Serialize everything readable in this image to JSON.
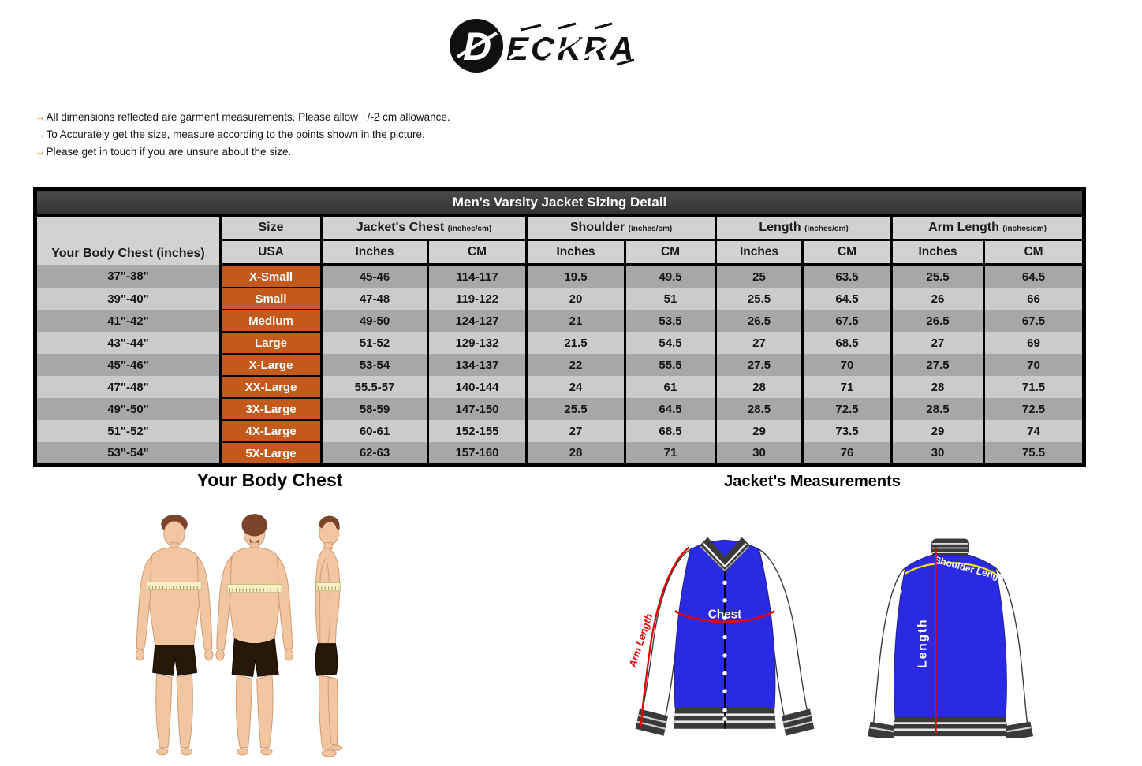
{
  "logo": {
    "d": "D",
    "rest": "ECKRA"
  },
  "notes": [
    "All dimensions reflected are garment measurements. Please allow +/-2 cm allowance.",
    "To Accurately get the size, measure according to the points shown in the picture.",
    "Please get in touch if you are unsure about the size."
  ],
  "table": {
    "title": "Men's Varsity Jacket Sizing Detail",
    "body_chest_header": "Your Body Chest (inches)",
    "size_header": "Size",
    "usa_header": "USA",
    "groups": [
      {
        "label": "Jacket's Chest",
        "unit": "(inches/cm)"
      },
      {
        "label": "Shoulder",
        "unit": "(inches/cm)"
      },
      {
        "label": "Length",
        "unit": "(inches/cm)"
      },
      {
        "label": "Arm Length",
        "unit": "(inches/cm)"
      }
    ],
    "sub_headers": [
      "Inches",
      "CM"
    ],
    "rows": [
      [
        "37\"-38\"",
        "X-Small",
        "45-46",
        "114-117",
        "19.5",
        "49.5",
        "25",
        "63.5",
        "25.5",
        "64.5"
      ],
      [
        "39\"-40\"",
        "Small",
        "47-48",
        "119-122",
        "20",
        "51",
        "25.5",
        "64.5",
        "26",
        "66"
      ],
      [
        "41\"-42\"",
        "Medium",
        "49-50",
        "124-127",
        "21",
        "53.5",
        "26.5",
        "67.5",
        "26.5",
        "67.5"
      ],
      [
        "43\"-44\"",
        "Large",
        "51-52",
        "129-132",
        "21.5",
        "54.5",
        "27",
        "68.5",
        "27",
        "69"
      ],
      [
        "45\"-46\"",
        "X-Large",
        "53-54",
        "134-137",
        "22",
        "55.5",
        "27.5",
        "70",
        "27.5",
        "70"
      ],
      [
        "47\"-48\"",
        "XX-Large",
        "55.5-57",
        "140-144",
        "24",
        "61",
        "28",
        "71",
        "28",
        "71.5"
      ],
      [
        "49\"-50\"",
        "3X-Large",
        "58-59",
        "147-150",
        "25.5",
        "64.5",
        "28.5",
        "72.5",
        "28.5",
        "72.5"
      ],
      [
        "51\"-52\"",
        "4X-Large",
        "60-61",
        "152-155",
        "27",
        "68.5",
        "29",
        "73.5",
        "29",
        "74"
      ],
      [
        "53\"-54\"",
        "5X-Large",
        "62-63",
        "157-160",
        "28",
        "71",
        "30",
        "76",
        "30",
        "75.5"
      ]
    ]
  },
  "sections": {
    "body_title": "Your Body Chest",
    "jacket_title": "Jacket's Measurements"
  },
  "diagram_labels": {
    "chest": "Chest",
    "arm_length": "Arm Length",
    "shoulder_length": "Shoulder Length",
    "length": "Length"
  },
  "colors": {
    "accent_orange": "#c4591c",
    "arrow_orange": "#e8732a",
    "title_bar": "#3a3a3a",
    "header_gray": "#d2d2d2",
    "row_dark": "#a7a7a7",
    "row_light": "#cbcbcb",
    "jacket_blue": "#2a2ae2",
    "garment_dark": "#3a3a3a",
    "measure_red": "#e60000",
    "measure_yellow": "#f2e50a",
    "skin": "#f1c6a1",
    "hair_brown": "#7b432a",
    "shorts_brown": "#281808",
    "tape_cream": "#f6f0c4"
  }
}
